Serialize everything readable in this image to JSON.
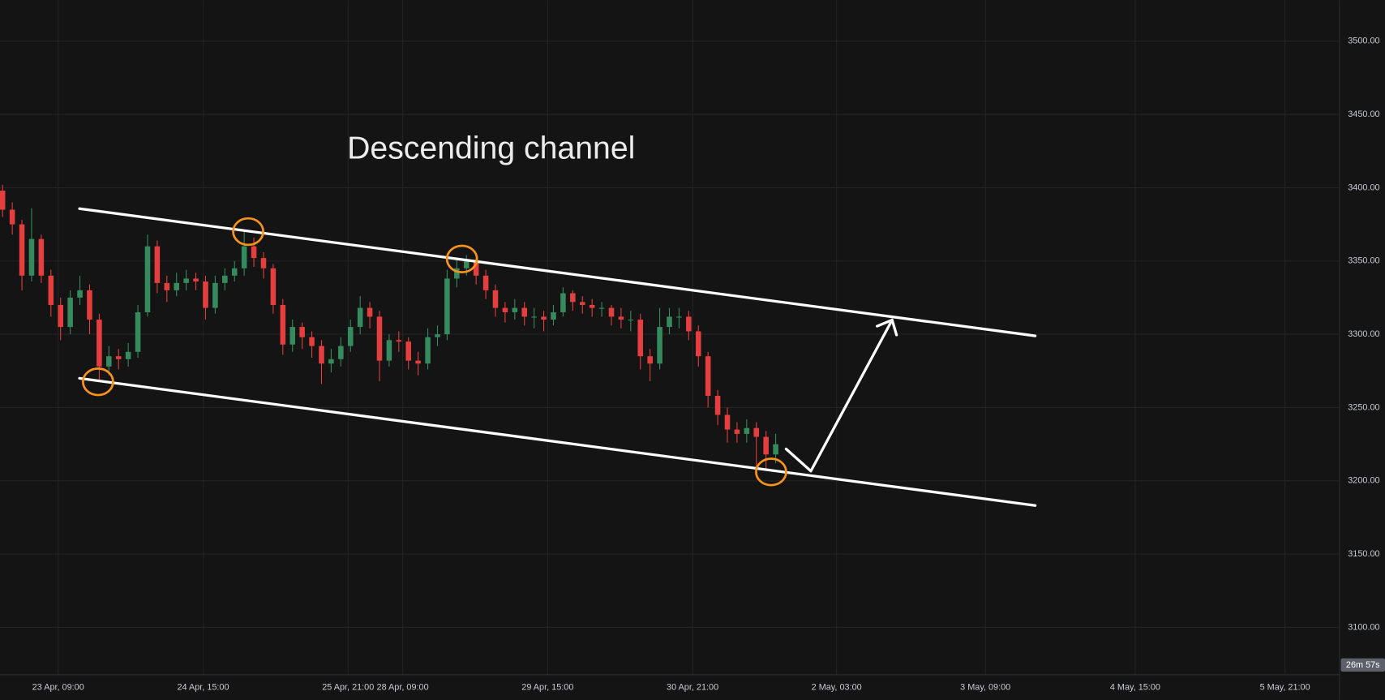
{
  "chart_data": {
    "type": "candlestick",
    "annotation": "Descending channel",
    "countdown": "26m 57s",
    "up_color": "#358a5e",
    "down_color": "#e53e3e",
    "grid": true,
    "ylim": [
      3068,
      3528
    ],
    "yticks": [
      {
        "value": 3100,
        "label": "3100.00"
      },
      {
        "value": 3150,
        "label": "3150.00"
      },
      {
        "value": 3200,
        "label": "3200.00"
      },
      {
        "value": 3250,
        "label": "3250.00"
      },
      {
        "value": 3300,
        "label": "3300.00"
      },
      {
        "value": 3350,
        "label": "3350.00"
      },
      {
        "value": 3400,
        "label": "3400.00"
      },
      {
        "value": 3450,
        "label": "3450.00"
      },
      {
        "value": 3500,
        "label": "3500.00"
      }
    ],
    "xlim": [
      -0.27,
      138.3
    ],
    "xticks": [
      {
        "value": 5.75,
        "label": "23 Apr, 09:00"
      },
      {
        "value": 20.75,
        "label": "24 Apr, 15:00"
      },
      {
        "value": 35.75,
        "label": "25 Apr, 21:00"
      },
      {
        "value": 41.4,
        "label": "28 Apr, 09:00"
      },
      {
        "value": 56.4,
        "label": "29 Apr, 15:00"
      },
      {
        "value": 71.4,
        "label": "30 Apr, 21:00"
      },
      {
        "value": 86.3,
        "label": "2 May, 03:00"
      },
      {
        "value": 101.7,
        "label": "3 May, 09:00"
      },
      {
        "value": 117.2,
        "label": "4 May, 15:00"
      },
      {
        "value": 132.7,
        "label": "5 May, 21:00"
      }
    ],
    "open": [
      3398,
      3385,
      3375,
      3340,
      3365,
      3340,
      3320,
      3305,
      3325,
      3330,
      3310,
      3278,
      3285,
      3283,
      3288,
      3315,
      3360,
      3335,
      3330,
      3335,
      3338,
      3336,
      3318,
      3335,
      3340,
      3345,
      3360,
      3352,
      3345,
      3320,
      3293,
      3305,
      3298,
      3292,
      3280,
      3283,
      3292,
      3305,
      3318,
      3312,
      3282,
      3296,
      3295,
      3282,
      3280,
      3298,
      3300,
      3338,
      3345,
      3350,
      3340,
      3330,
      3318,
      3315,
      3318,
      3312,
      3312,
      3310,
      3315,
      3328,
      3322,
      3320,
      3318,
      3318,
      3312,
      3310,
      3310,
      3285,
      3280,
      3305,
      3312,
      3312,
      3302,
      3285,
      3258,
      3245,
      3235,
      3232,
      3236,
      3230,
      3218
    ],
    "high": [
      3402,
      3390,
      3378,
      3386,
      3368,
      3344,
      3325,
      3330,
      3340,
      3334,
      3314,
      3292,
      3290,
      3294,
      3320,
      3368,
      3364,
      3340,
      3342,
      3344,
      3342,
      3340,
      3340,
      3345,
      3350,
      3370,
      3366,
      3356,
      3348,
      3324,
      3310,
      3308,
      3302,
      3296,
      3290,
      3298,
      3310,
      3326,
      3322,
      3316,
      3300,
      3302,
      3298,
      3288,
      3304,
      3306,
      3344,
      3352,
      3354,
      3352,
      3344,
      3334,
      3322,
      3324,
      3322,
      3318,
      3316,
      3320,
      3332,
      3330,
      3326,
      3324,
      3322,
      3320,
      3318,
      3316,
      3314,
      3290,
      3318,
      3318,
      3318,
      3316,
      3306,
      3288,
      3262,
      3250,
      3240,
      3242,
      3240,
      3234,
      3232
    ],
    "low": [
      3380,
      3368,
      3330,
      3336,
      3335,
      3312,
      3296,
      3300,
      3320,
      3300,
      3268,
      3272,
      3276,
      3278,
      3284,
      3312,
      3328,
      3322,
      3326,
      3330,
      3330,
      3310,
      3314,
      3330,
      3336,
      3340,
      3346,
      3338,
      3314,
      3286,
      3288,
      3290,
      3284,
      3266,
      3274,
      3278,
      3288,
      3300,
      3304,
      3268,
      3278,
      3288,
      3276,
      3272,
      3276,
      3292,
      3296,
      3332,
      3340,
      3334,
      3324,
      3312,
      3308,
      3310,
      3306,
      3304,
      3302,
      3306,
      3312,
      3316,
      3314,
      3312,
      3312,
      3306,
      3304,
      3302,
      3276,
      3268,
      3276,
      3300,
      3304,
      3296,
      3278,
      3250,
      3238,
      3226,
      3226,
      3226,
      3210,
      3208,
      3212
    ],
    "close": [
      3385,
      3375,
      3340,
      3365,
      3340,
      3320,
      3305,
      3325,
      3330,
      3310,
      3278,
      3285,
      3283,
      3288,
      3315,
      3360,
      3335,
      3330,
      3335,
      3338,
      3336,
      3318,
      3335,
      3340,
      3345,
      3360,
      3352,
      3345,
      3320,
      3293,
      3305,
      3298,
      3292,
      3280,
      3283,
      3292,
      3305,
      3318,
      3312,
      3282,
      3296,
      3295,
      3282,
      3280,
      3298,
      3300,
      3338,
      3345,
      3350,
      3340,
      3330,
      3318,
      3315,
      3318,
      3312,
      3312,
      3310,
      3315,
      3328,
      3322,
      3320,
      3318,
      3318,
      3312,
      3310,
      3310,
      3285,
      3280,
      3305,
      3312,
      3312,
      3302,
      3285,
      3258,
      3245,
      3235,
      3232,
      3236,
      3230,
      3218,
      3225
    ]
  }
}
